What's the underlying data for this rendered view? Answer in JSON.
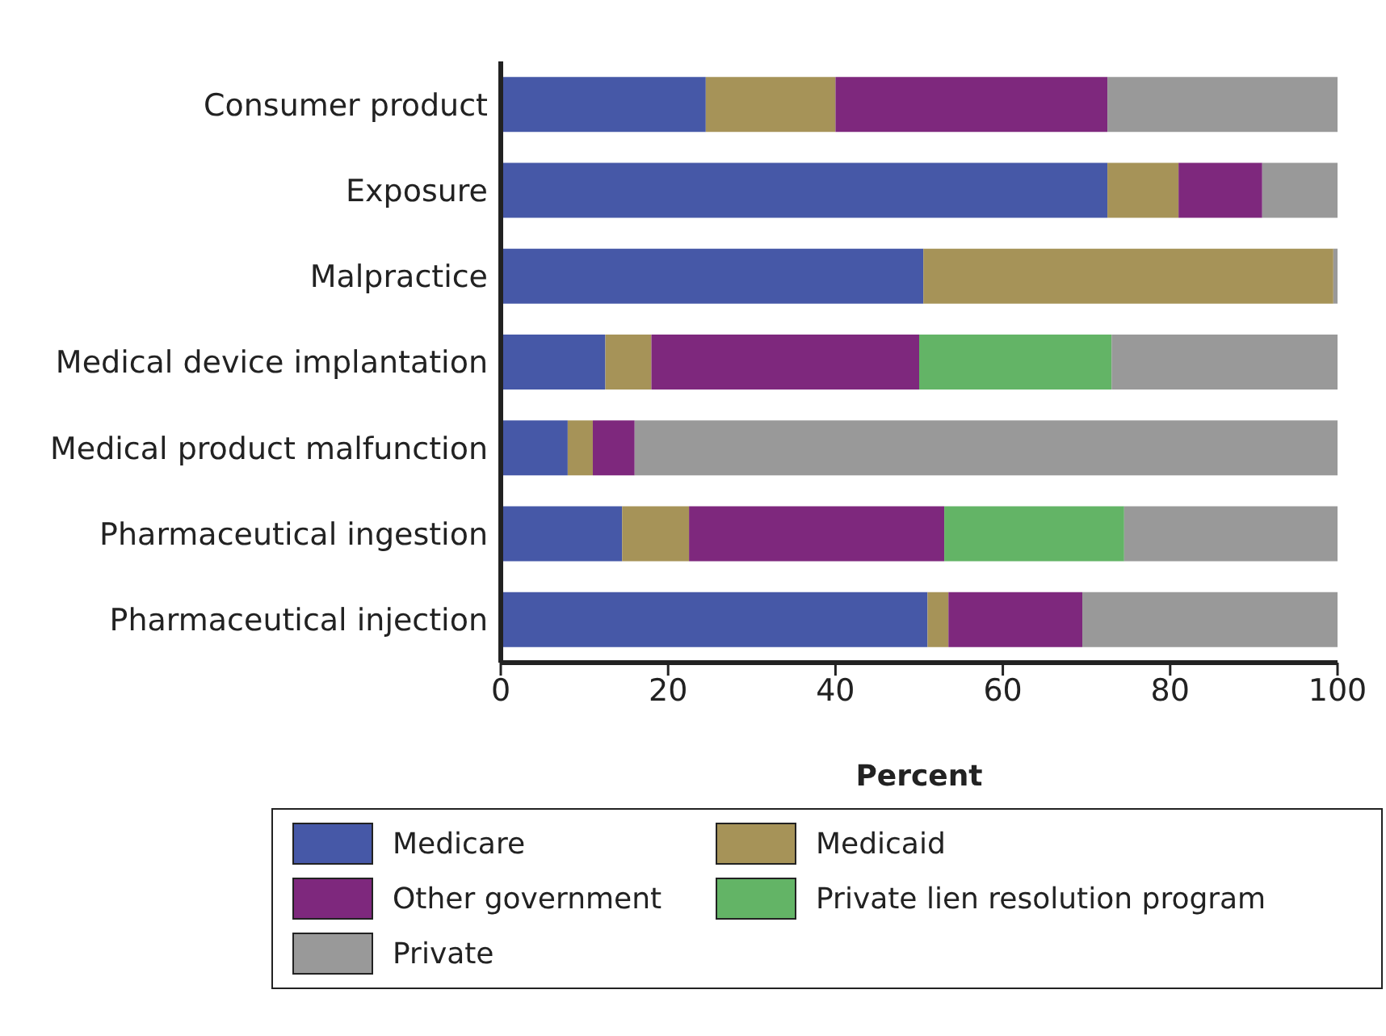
{
  "chart_data": {
    "type": "bar",
    "orientation": "horizontal",
    "stacked": true,
    "xlabel": "Percent",
    "categories": [
      "Consumer product",
      "Exposure",
      "Malpractice",
      "Medical device implantation",
      "Medical product malfunction",
      "Pharmaceutical ingestion",
      "Pharmaceutical injection"
    ],
    "series": [
      {
        "name": "Medicare",
        "color": "#4658a7",
        "values": [
          24.5,
          72.5,
          50.5,
          12.5,
          8,
          14.5,
          51
        ]
      },
      {
        "name": "Medicaid",
        "color": "#a69358",
        "values": [
          15.5,
          8.5,
          49,
          5.5,
          3,
          8,
          2.5
        ]
      },
      {
        "name": "Other government",
        "color": "#7e287d",
        "values": [
          32.5,
          10,
          0,
          32,
          5,
          30.5,
          16
        ]
      },
      {
        "name": "Private lien resolution program",
        "color": "#63b466",
        "values": [
          0,
          0,
          0,
          23,
          0,
          21.5,
          0
        ]
      },
      {
        "name": "Private",
        "color": "#999999",
        "values": [
          27.5,
          9,
          0.5,
          27,
          84,
          25.5,
          30.5
        ]
      }
    ],
    "xlim": [
      0,
      100
    ],
    "xticks": [
      0,
      20,
      40,
      60,
      80,
      100
    ],
    "grid": false,
    "legend": "bottom"
  }
}
